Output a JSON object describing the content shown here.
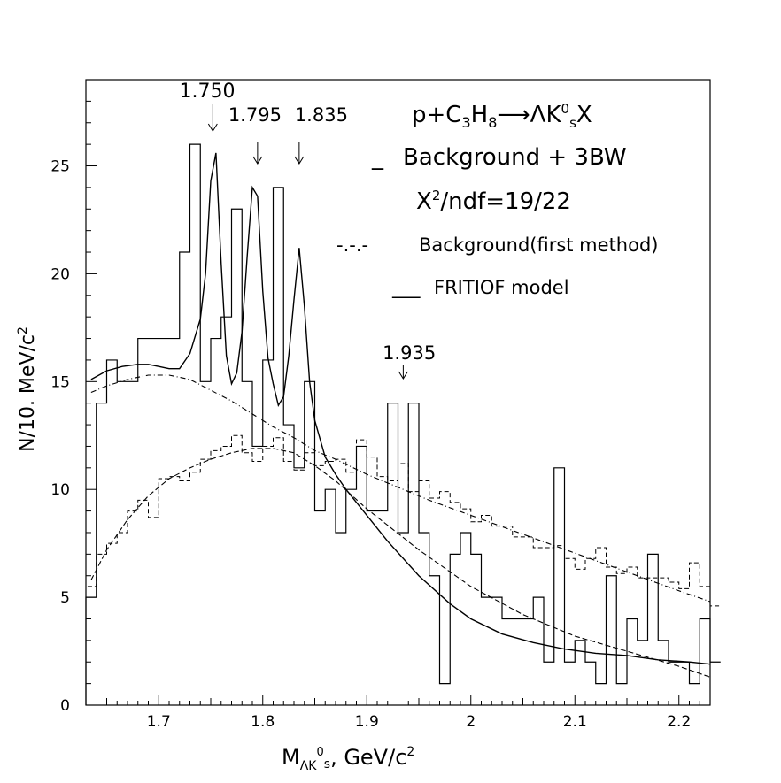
{
  "chart_data": {
    "type": "line",
    "xlabel": {
      "main": "M",
      "sub": "ΛK",
      "sup": "0",
      "sub2": "s",
      "tail": ", GeV/c",
      "tailsup": "2"
    },
    "ylabel": {
      "main": "N/10. MeV/c",
      "sup": "2"
    },
    "xlim": [
      1.63,
      2.23
    ],
    "ylim": [
      0,
      29
    ],
    "x_ticks": [
      1.7,
      1.8,
      1.9,
      2.0,
      2.1,
      2.2
    ],
    "x_tick_labels": [
      "1.7",
      "1.8",
      "1.9",
      "2",
      "2.1",
      "2.2"
    ],
    "y_ticks": [
      0,
      5,
      10,
      15,
      20,
      25
    ],
    "y_tick_labels": [
      "0",
      "5",
      "10",
      "15",
      "20",
      "25"
    ],
    "grid": false,
    "reaction": {
      "p": "p+C",
      "c_sub": "3",
      "h": "H",
      "h_sub": "8",
      "arrow": "⟶",
      "prod": "ΛK",
      "prod_sup": "0",
      "prod_sub": "s",
      "x": "X"
    },
    "legend": {
      "fit_marker": "_",
      "fit_label": "Background + 3BW",
      "chi_label": "X",
      "chi_sup": "2",
      "chi_rest": "/ndf=19/22",
      "bg_marker": "-.-.-",
      "bg_label": "Background(first method)",
      "fritiof_marker": "___",
      "fritiof_label": "FRITIOF model"
    },
    "peak_annotations": [
      {
        "label": "1.750",
        "x": 1.75,
        "arrow_y": 25.9
      },
      {
        "label": "1.795",
        "x": 1.795,
        "arrow_y": 25.9
      },
      {
        "label": "1.835",
        "x": 1.835,
        "arrow_y": 25.9
      },
      {
        "label": "1.935",
        "x": 1.945,
        "arrow_y": 15.2
      }
    ],
    "bin_width": 0.01,
    "data_hist": {
      "name": "data",
      "bin_low_edges_start": 1.63,
      "values": [
        5,
        14,
        16,
        15,
        15,
        17,
        17,
        17,
        17,
        21,
        26,
        15,
        17,
        18,
        23,
        15,
        12,
        16,
        24,
        13,
        11,
        15,
        9,
        10,
        8,
        10,
        12,
        9,
        9,
        14,
        8,
        14,
        8,
        6,
        1,
        7,
        8,
        7,
        5,
        5,
        4,
        4,
        4,
        5,
        2,
        11,
        2,
        3,
        2,
        1,
        6,
        1,
        4,
        3,
        7,
        3,
        2,
        2,
        1,
        4,
        2
      ]
    },
    "fritiof_hist": {
      "name": "FRITIOF model",
      "bin_low_edges_start": 1.63,
      "values": [
        5.5,
        7,
        7.5,
        8,
        9,
        9.5,
        8.7,
        10.5,
        10.6,
        10.4,
        10.8,
        11.4,
        11.8,
        12,
        12.5,
        11.7,
        11.3,
        12,
        12.4,
        11.3,
        10.9,
        11.7,
        11.1,
        11.3,
        11.4,
        10.8,
        12.3,
        11.5,
        10.6,
        10.4,
        11.2,
        9.9,
        10.4,
        9.6,
        9.9,
        9.4,
        9.1,
        8.5,
        8.8,
        8.3,
        8.3,
        7.8,
        7.8,
        7.3,
        7.3,
        7.4,
        6.8,
        6.3,
        6.8,
        7.3,
        6.4,
        6.1,
        6.4,
        5.9,
        5.9,
        5.9,
        5.7,
        5.4,
        6.6,
        5.5,
        4.6
      ]
    },
    "fit_curve": {
      "name": "Background + 3BW",
      "x": [
        1.635,
        1.65,
        1.665,
        1.68,
        1.69,
        1.7,
        1.71,
        1.72,
        1.73,
        1.74,
        1.745,
        1.75,
        1.755,
        1.76,
        1.765,
        1.77,
        1.775,
        1.78,
        1.785,
        1.79,
        1.795,
        1.8,
        1.805,
        1.81,
        1.815,
        1.82,
        1.825,
        1.83,
        1.835,
        1.84,
        1.845,
        1.85,
        1.86,
        1.87,
        1.88,
        1.9,
        1.92,
        1.95,
        1.98,
        2.0,
        2.03,
        2.06,
        2.09,
        2.12,
        2.15,
        2.18,
        2.21,
        2.23
      ],
      "y": [
        15.1,
        15.5,
        15.7,
        15.8,
        15.8,
        15.7,
        15.6,
        15.6,
        16.3,
        17.9,
        20,
        24.3,
        25.6,
        20.5,
        16.2,
        14.9,
        15.4,
        17.3,
        20.8,
        24,
        23.6,
        19.2,
        16.1,
        14.9,
        13.9,
        14.3,
        16.2,
        18.8,
        21.2,
        18.5,
        15,
        13.2,
        11.5,
        10.7,
        10,
        8.8,
        7.6,
        6,
        4.7,
        4,
        3.3,
        2.9,
        2.6,
        2.4,
        2.3,
        2.1,
        2,
        1.9
      ]
    },
    "background_curve": {
      "name": "Background(first method)",
      "x": [
        1.635,
        1.65,
        1.67,
        1.69,
        1.71,
        1.73,
        1.75,
        1.77,
        1.79,
        1.81,
        1.83,
        1.85,
        1.87,
        1.9,
        1.93,
        1.96,
        2.0,
        2.04,
        2.08,
        2.12,
        2.16,
        2.2,
        2.23
      ],
      "y": [
        14.5,
        14.8,
        15.1,
        15.3,
        15.3,
        15.1,
        14.6,
        14.1,
        13.5,
        12.9,
        12.4,
        11.8,
        11.4,
        10.7,
        10.1,
        9.5,
        8.8,
        8.1,
        7.4,
        6.7,
        6.0,
        5.3,
        4.8
      ]
    },
    "fritiof_curve": {
      "name": "FRITIOF model",
      "x": [
        1.635,
        1.65,
        1.67,
        1.69,
        1.71,
        1.73,
        1.75,
        1.77,
        1.79,
        1.81,
        1.83,
        1.85,
        1.87,
        1.9,
        1.95,
        2.0,
        2.05,
        2.1,
        2.15,
        2.2,
        2.23
      ],
      "y": [
        5.8,
        7.2,
        8.6,
        9.7,
        10.5,
        11.0,
        11.4,
        11.7,
        11.9,
        11.9,
        11.7,
        11.1,
        10.4,
        9.1,
        7.2,
        5.5,
        4.2,
        3.2,
        2.5,
        1.8,
        1.3
      ]
    }
  }
}
